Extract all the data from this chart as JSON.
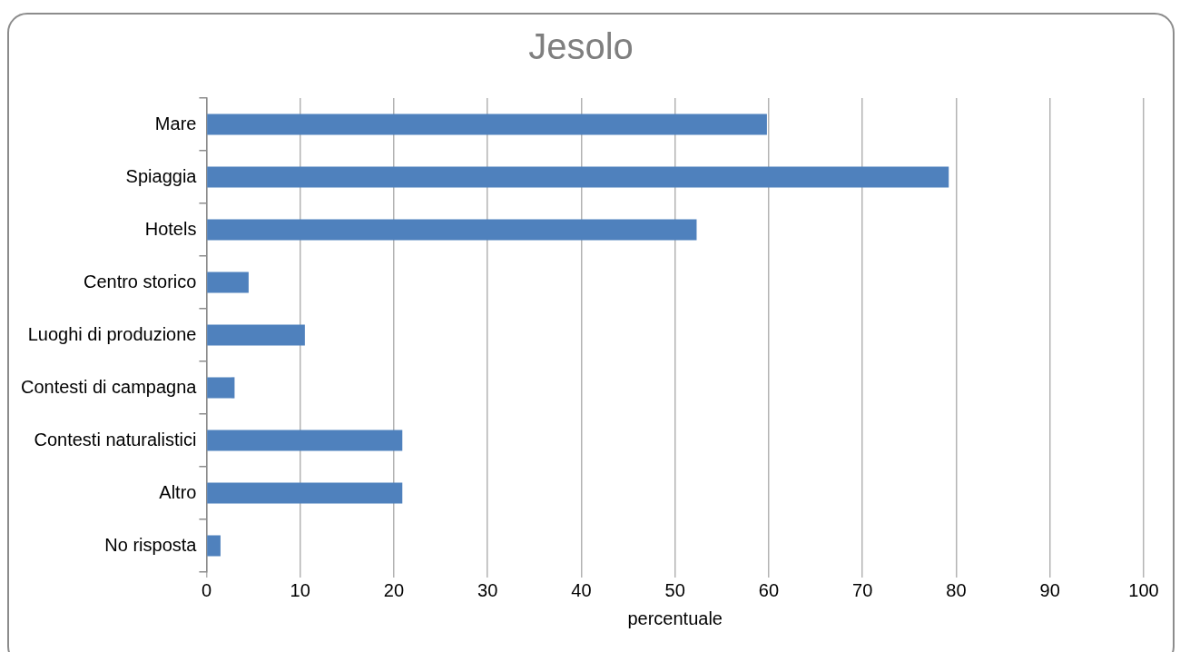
{
  "chart_data": {
    "type": "bar",
    "orientation": "horizontal",
    "title": "Jesolo",
    "xlabel": "percentuale",
    "categories": [
      "Mare",
      "Spiaggia",
      "Hotels",
      "Centro storico",
      "Luoghi di produzione",
      "Contesti di campagna",
      "Contesti naturalistici",
      "Altro",
      "No risposta"
    ],
    "values": [
      59.8,
      79.2,
      52.3,
      4.5,
      10.5,
      3.0,
      20.9,
      20.9,
      1.5
    ],
    "color": "#4f81bd",
    "xlim": [
      0,
      100
    ],
    "xticks": [
      0,
      10,
      20,
      30,
      40,
      50,
      60,
      70,
      80,
      90,
      100
    ],
    "grid": "x"
  }
}
